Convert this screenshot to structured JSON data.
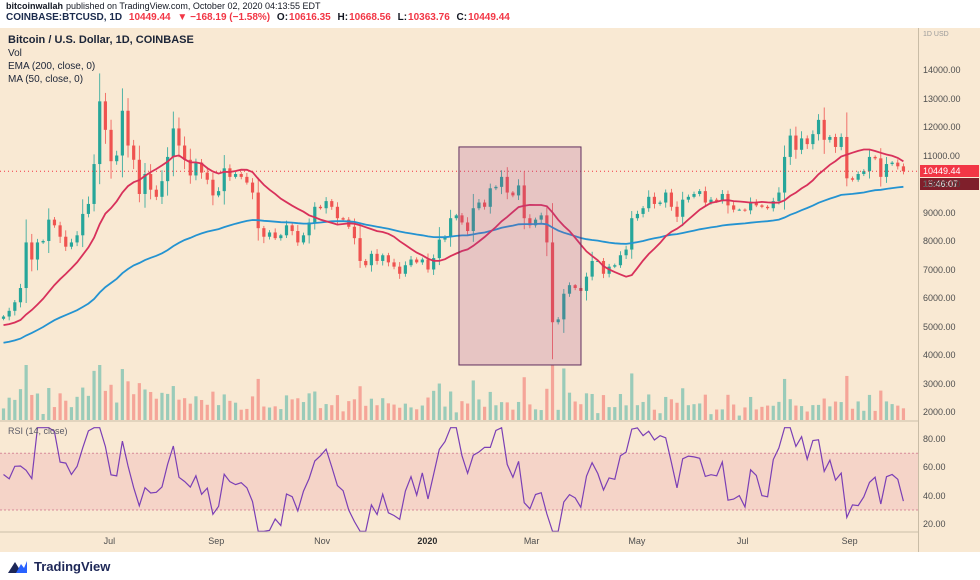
{
  "header": {
    "author": "bitcoinwallah",
    "published": "published on TradingView.com, October 02, 2020 04:13:55 EDT"
  },
  "symbol_bar": {
    "symbol": "COINBASE:BTCUSD, 1D",
    "last": "10449.44",
    "change": "▼ −168.19 (−1.58%)",
    "o_label": "O:",
    "o": "10616.35",
    "h_label": "H:",
    "h": "10668.56",
    "l_label": "L:",
    "l": "10363.76",
    "c_label": "C:",
    "c": "10449.44"
  },
  "legend": {
    "title": "Bitcoin / U.S. Dollar, 1D, COINBASE",
    "vol": "Vol",
    "ema": "EMA (200, close, 0)",
    "ma": "MA (50, close, 0)",
    "rsi": "RSI (14, close)"
  },
  "axis": {
    "top_right": "1D USD",
    "price_labels": [
      "14000.00",
      "13000.00",
      "12000.00",
      "11000.00",
      "10000.00",
      "9000.00",
      "8000.00",
      "7000.00",
      "6000.00",
      "5000.00",
      "4000.00",
      "3000.00",
      "2000.00"
    ],
    "rsi_labels": [
      "80.00",
      "60.00",
      "40.00",
      "20.00"
    ],
    "last_price_badge": "10449.44",
    "countdown": "15:46:07",
    "time_labels": [
      {
        "label": "Jul",
        "index": 18.7
      },
      {
        "label": "Sep",
        "index": 37.6
      },
      {
        "label": "Nov",
        "index": 56.3
      },
      {
        "label": "2020",
        "index": 74.9
      },
      {
        "label": "Mar",
        "index": 93.3
      },
      {
        "label": "May",
        "index": 111.9
      },
      {
        "label": "Jul",
        "index": 130.6
      },
      {
        "label": "Sep",
        "index": 149.5
      }
    ]
  },
  "footer": {
    "brand": "TradingView"
  },
  "colors": {
    "up": "#26a69a",
    "down": "#ef5350",
    "ema": "#2493d1",
    "ma": "#d8315b",
    "rsi": "#7b3fb5",
    "rsi_band": "rgba(226,66,120,0.12)",
    "rsi_band_border": "rgba(190,70,110,0.55)",
    "last_line": "#f23645",
    "badge_bg": "#f23645",
    "countdown_bg": "#7f1f2b",
    "highlight_fill": "rgba(170,70,140,0.22)",
    "highlight_stroke": "#5f2f5e",
    "background": "#f9e9d3"
  },
  "chart_data": {
    "type": "candlestick",
    "title": "Bitcoin / U.S. Dollar",
    "exchange": "COINBASE",
    "interval": "1D",
    "x_span": "May 2019 – Oct 02 2020 (each point ≈ 3 days)",
    "y_axis_range": [
      2000,
      14000
    ],
    "last_price": 10449.44,
    "ema_seed": 4400,
    "closes": [
      5350,
      5550,
      5850,
      6350,
      7950,
      7350,
      7950,
      8000,
      8750,
      8550,
      8150,
      7800,
      7950,
      8200,
      8950,
      9300,
      10700,
      12900,
      11900,
      10800,
      11000,
      12570,
      11350,
      10850,
      9650,
      10350,
      9800,
      9550,
      10100,
      10950,
      11950,
      11350,
      10850,
      10300,
      10750,
      10400,
      10150,
      9600,
      9750,
      10550,
      10250,
      10350,
      10250,
      10050,
      9700,
      8450,
      8150,
      8300,
      8100,
      8200,
      8550,
      8350,
      7950,
      8200,
      8650,
      9200,
      9150,
      9400,
      9200,
      8800,
      8750,
      8500,
      8100,
      7300,
      7150,
      7550,
      7300,
      7500,
      7250,
      7100,
      6850,
      7150,
      7350,
      7250,
      7350,
      7000,
      7400,
      8050,
      8150,
      8800,
      8900,
      8650,
      8350,
      9150,
      9350,
      9200,
      9850,
      9900,
      10250,
      9700,
      9600,
      9950,
      8800,
      8550,
      8750,
      8900,
      7950,
      5150,
      5250,
      6150,
      6450,
      6350,
      6250,
      6750,
      7300,
      7300,
      6850,
      7100,
      7150,
      7500,
      7700,
      8800,
      8950,
      9150,
      9550,
      9300,
      9350,
      9700,
      9200,
      8850,
      9450,
      9550,
      9650,
      9750,
      9350,
      9450,
      9400,
      9650,
      9250,
      9100,
      9100,
      9075,
      9375,
      9250,
      9200,
      9150,
      9400,
      9700,
      10950,
      11700,
      11200,
      11600,
      11400,
      11750,
      12250,
      11550,
      11650,
      11300,
      11650,
      10200,
      10150,
      10350,
      10450,
      10950,
      10900,
      10250,
      10700,
      10750,
      10620,
      10449
    ],
    "wick_overrides": [
      {
        "i": 17,
        "high": 13880
      },
      {
        "i": 97,
        "low": 3850
      }
    ],
    "highlight_box": {
      "start_index": 81,
      "end_index": 101.5,
      "price_top": 11300,
      "price_bottom": 3650
    },
    "indicators": {
      "ema": {
        "length": 200,
        "source": "close"
      },
      "ma": {
        "length": 50,
        "source": "close"
      },
      "rsi": {
        "length": 14,
        "source": "close",
        "band": [
          30,
          70
        ],
        "axis_ticks": [
          80,
          60,
          40,
          20
        ]
      }
    }
  }
}
